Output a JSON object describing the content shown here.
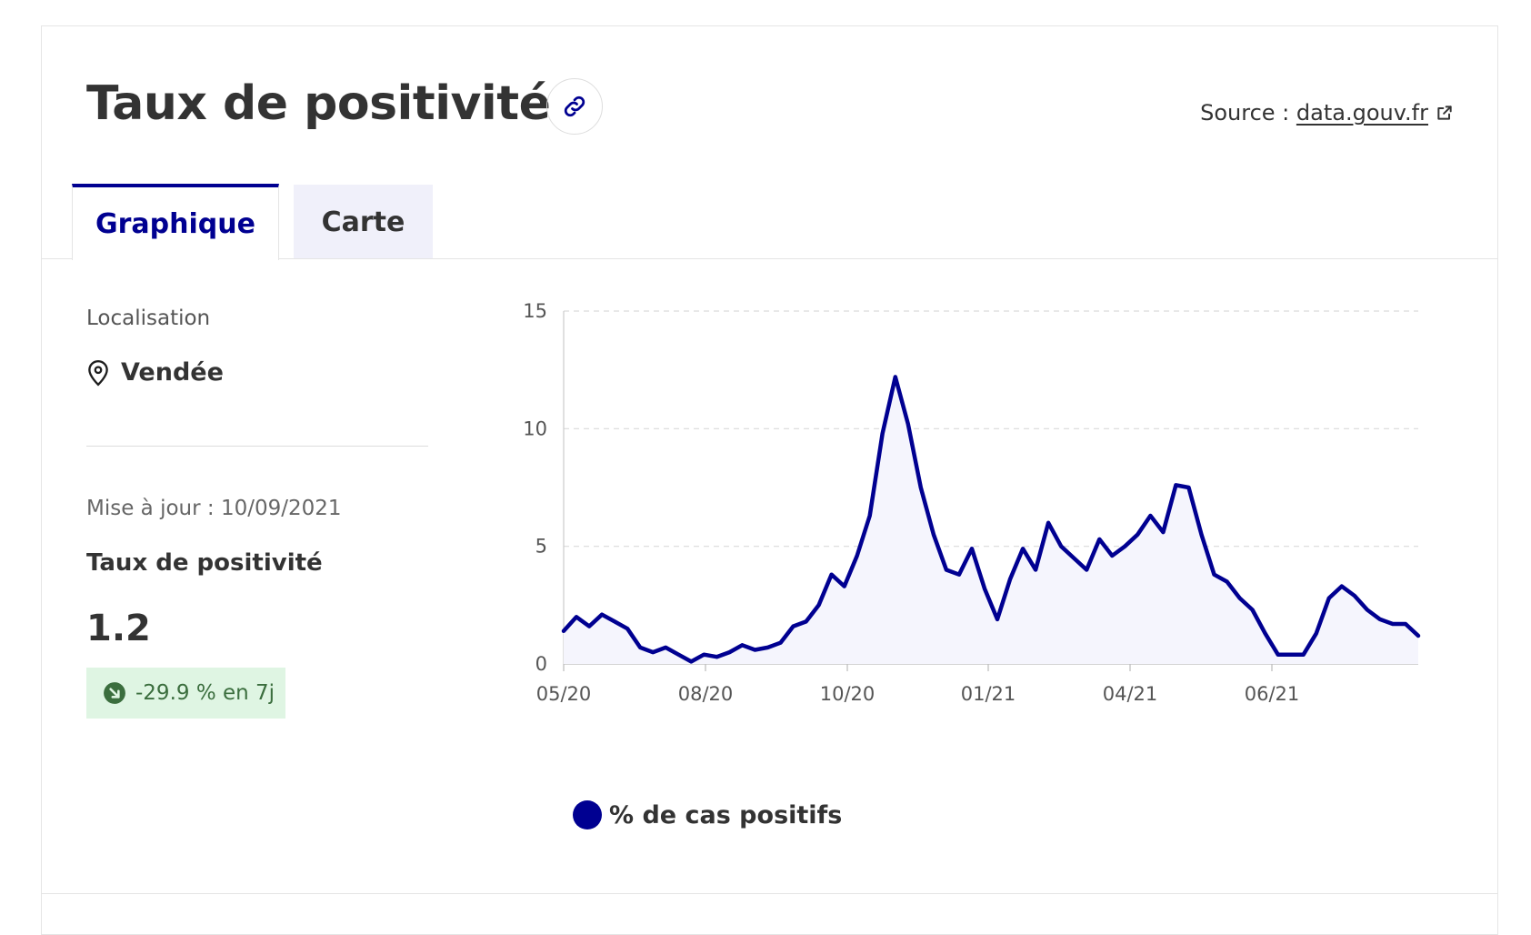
{
  "header": {
    "title": "Taux de positivité",
    "source_prefix": "Source : ",
    "source_link": "data.gouv.fr"
  },
  "tabs": [
    {
      "label": "Graphique",
      "active": true
    },
    {
      "label": "Carte",
      "active": false
    }
  ],
  "sidebar": {
    "location_label": "Localisation",
    "location_value": "Vendée",
    "update_text": "Mise à jour : 10/09/2021",
    "kpi_label": "Taux de positivité",
    "kpi_value": "1.2",
    "trend_text": "-29.9 % en 7j"
  },
  "colors": {
    "accent": "#000091",
    "badge_bg": "#dff5e3",
    "badge_text": "#3b6e3e",
    "area_fill": "#f5f5fd"
  },
  "icons": {
    "link": "link-icon",
    "external": "external-link-icon",
    "location": "location-pin-icon",
    "trend": "arrow-down-right-icon"
  },
  "chart_data": {
    "type": "area",
    "legend": "% de cas positifs",
    "x_ticks": [
      "05/20",
      "08/20",
      "10/20",
      "01/21",
      "04/21",
      "06/21"
    ],
    "y_ticks": [
      "0",
      "5",
      "10",
      "15"
    ],
    "ylim": [
      0,
      15
    ],
    "grid": true,
    "series": [
      {
        "name": "% de cas positifs",
        "points": [
          [
            "05/20",
            1.4
          ],
          [
            "05/20",
            2.0
          ],
          [
            "05/20",
            1.6
          ],
          [
            "05/20",
            2.1
          ],
          [
            "05/20",
            1.8
          ],
          [
            "06/20",
            1.5
          ],
          [
            "06/20",
            0.7
          ],
          [
            "06/20",
            0.5
          ],
          [
            "06/20",
            0.7
          ],
          [
            "07/20",
            0.4
          ],
          [
            "07/20",
            0.1
          ],
          [
            "07/20",
            0.4
          ],
          [
            "07/20",
            0.3
          ],
          [
            "08/20",
            0.5
          ],
          [
            "08/20",
            0.8
          ],
          [
            "08/20",
            0.6
          ],
          [
            "08/20",
            0.7
          ],
          [
            "09/20",
            0.9
          ],
          [
            "09/20",
            1.6
          ],
          [
            "09/20",
            1.8
          ],
          [
            "09/20",
            2.5
          ],
          [
            "09/20",
            3.8
          ],
          [
            "09/20",
            3.3
          ],
          [
            "10/20",
            4.6
          ],
          [
            "10/20",
            6.3
          ],
          [
            "10/20",
            9.8
          ],
          [
            "10/20",
            12.2
          ],
          [
            "10/20",
            10.2
          ],
          [
            "11/20",
            7.5
          ],
          [
            "11/20",
            5.5
          ],
          [
            "11/20",
            4.0
          ],
          [
            "11/20",
            3.8
          ],
          [
            "12/20",
            4.9
          ],
          [
            "12/20",
            3.2
          ],
          [
            "12/20",
            1.9
          ],
          [
            "12/20",
            3.6
          ],
          [
            "12/20",
            4.9
          ],
          [
            "01/21",
            4.0
          ],
          [
            "01/21",
            6.0
          ],
          [
            "01/21",
            5.0
          ],
          [
            "02/21",
            4.5
          ],
          [
            "02/21",
            4.0
          ],
          [
            "02/21",
            5.3
          ],
          [
            "02/21",
            4.6
          ],
          [
            "03/21",
            5.0
          ],
          [
            "03/21",
            5.5
          ],
          [
            "03/21",
            6.3
          ],
          [
            "03/21",
            5.6
          ],
          [
            "04/21",
            7.6
          ],
          [
            "04/21",
            7.5
          ],
          [
            "04/21",
            5.5
          ],
          [
            "05/21",
            3.8
          ],
          [
            "05/21",
            3.5
          ],
          [
            "05/21",
            2.8
          ],
          [
            "05/21",
            2.3
          ],
          [
            "06/21",
            1.3
          ],
          [
            "06/21",
            0.4
          ],
          [
            "06/21",
            0.4
          ],
          [
            "06/21",
            0.4
          ],
          [
            "07/21",
            1.3
          ],
          [
            "07/21",
            2.8
          ],
          [
            "07/21",
            3.3
          ],
          [
            "07/21",
            2.9
          ],
          [
            "08/21",
            2.3
          ],
          [
            "08/21",
            1.9
          ],
          [
            "08/21",
            1.7
          ],
          [
            "08/21",
            1.7
          ],
          [
            "09/21",
            1.2
          ]
        ]
      }
    ]
  }
}
